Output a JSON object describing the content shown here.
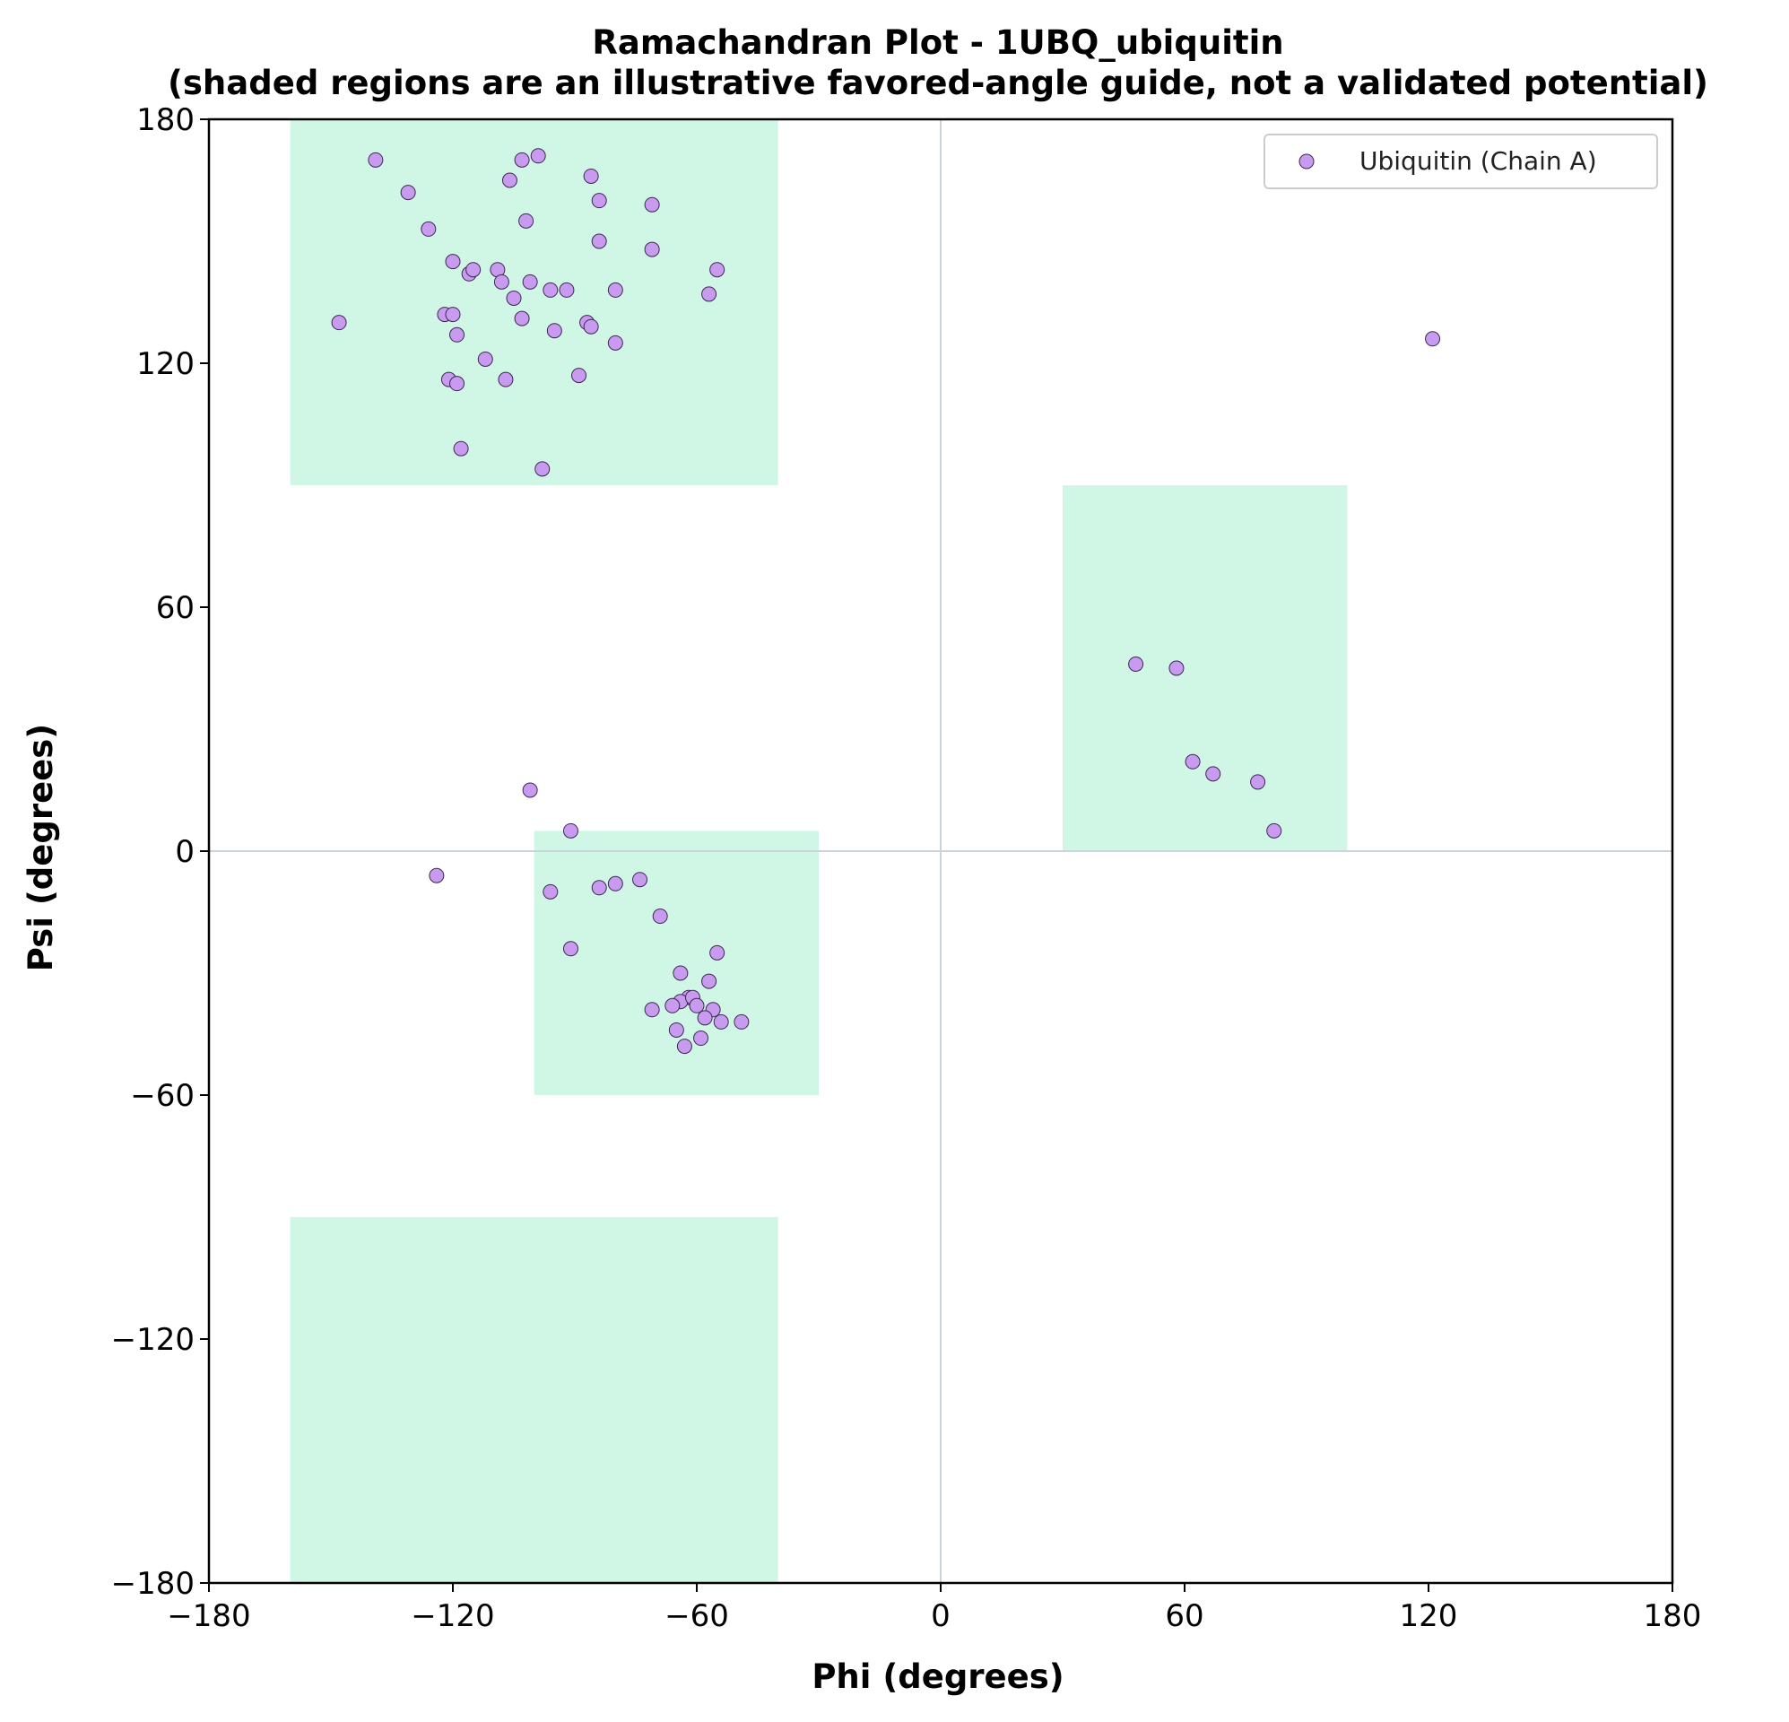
{
  "chart_data": {
    "type": "scatter",
    "title": "Ramachandran Plot - 1UBQ_ubiquitin",
    "subtitle": "(shaded regions are an illustrative favored-angle guide, not a validated potential)",
    "xlabel": "Phi (degrees)",
    "ylabel": "Psi (degrees)",
    "xlim": [
      -180,
      180
    ],
    "ylim": [
      -180,
      180
    ],
    "xticks": [
      -180,
      -120,
      -60,
      0,
      60,
      120,
      180
    ],
    "yticks": [
      -180,
      -120,
      -60,
      0,
      60,
      120,
      180
    ],
    "xtick_labels": [
      "−180",
      "−120",
      "−60",
      "0",
      "60",
      "120",
      "180"
    ],
    "ytick_labels": [
      "−180",
      "−120",
      "−60",
      "0",
      "60",
      "120",
      "180"
    ],
    "grid": false,
    "reference_lines": {
      "x": 0,
      "y": 0,
      "color": "#c9d3dc"
    },
    "shaded_regions": [
      {
        "phi": [
          -160,
          -40
        ],
        "psi": [
          90,
          180
        ]
      },
      {
        "phi": [
          -160,
          -40
        ],
        "psi": [
          -180,
          -90
        ]
      },
      {
        "phi": [
          -100,
          -30
        ],
        "psi": [
          -60,
          5
        ]
      },
      {
        "phi": [
          30,
          100
        ],
        "psi": [
          0,
          90
        ]
      }
    ],
    "region_color": "#d0f7e5",
    "legend_position": "top-right",
    "series": [
      {
        "name": "Ubiquitin (Chain A)",
        "color": "#c89af0",
        "edge_color": "#3b2a4d",
        "points": [
          [
            -139,
            170
          ],
          [
            -131,
            162
          ],
          [
            -126,
            153
          ],
          [
            -103,
            170
          ],
          [
            -99,
            171
          ],
          [
            -106,
            165
          ],
          [
            -86,
            166
          ],
          [
            -84,
            160
          ],
          [
            -71,
            159
          ],
          [
            -102,
            155
          ],
          [
            -84,
            150
          ],
          [
            -71,
            148
          ],
          [
            -120,
            145
          ],
          [
            -116,
            142
          ],
          [
            -115,
            143
          ],
          [
            -109,
            143
          ],
          [
            -108,
            140
          ],
          [
            -101,
            140
          ],
          [
            -96,
            138
          ],
          [
            -92,
            138
          ],
          [
            -80,
            138
          ],
          [
            -55,
            143
          ],
          [
            -57,
            137
          ],
          [
            -105,
            136
          ],
          [
            -122,
            132
          ],
          [
            -120,
            132
          ],
          [
            -148,
            130
          ],
          [
            -103,
            131
          ],
          [
            -87,
            130
          ],
          [
            -86,
            129
          ],
          [
            -119,
            127
          ],
          [
            -95,
            128
          ],
          [
            -80,
            125
          ],
          [
            -112,
            121
          ],
          [
            -121,
            116
          ],
          [
            -107,
            116
          ],
          [
            -89,
            117
          ],
          [
            -119,
            115
          ],
          [
            -118,
            99
          ],
          [
            -98,
            94
          ],
          [
            -101,
            15
          ],
          [
            -91,
            5
          ],
          [
            -124,
            -6
          ],
          [
            -96,
            -10
          ],
          [
            -84,
            -9
          ],
          [
            -80,
            -8
          ],
          [
            -74,
            -7
          ],
          [
            -69,
            -16
          ],
          [
            -55,
            -25
          ],
          [
            -91,
            -24
          ],
          [
            -64,
            -30
          ],
          [
            -57,
            -32
          ],
          [
            -62,
            -36
          ],
          [
            -64,
            -37
          ],
          [
            -66,
            -38
          ],
          [
            -61,
            -36
          ],
          [
            -60,
            -38
          ],
          [
            -56,
            -39
          ],
          [
            -71,
            -39
          ],
          [
            -58,
            -41
          ],
          [
            -54,
            -42
          ],
          [
            -49,
            -42
          ],
          [
            -65,
            -44
          ],
          [
            -59,
            -46
          ],
          [
            -63,
            -48
          ],
          [
            48,
            46
          ],
          [
            58,
            45
          ],
          [
            62,
            22
          ],
          [
            67,
            19
          ],
          [
            78,
            17
          ],
          [
            82,
            5
          ],
          [
            121,
            126
          ]
        ]
      }
    ]
  }
}
